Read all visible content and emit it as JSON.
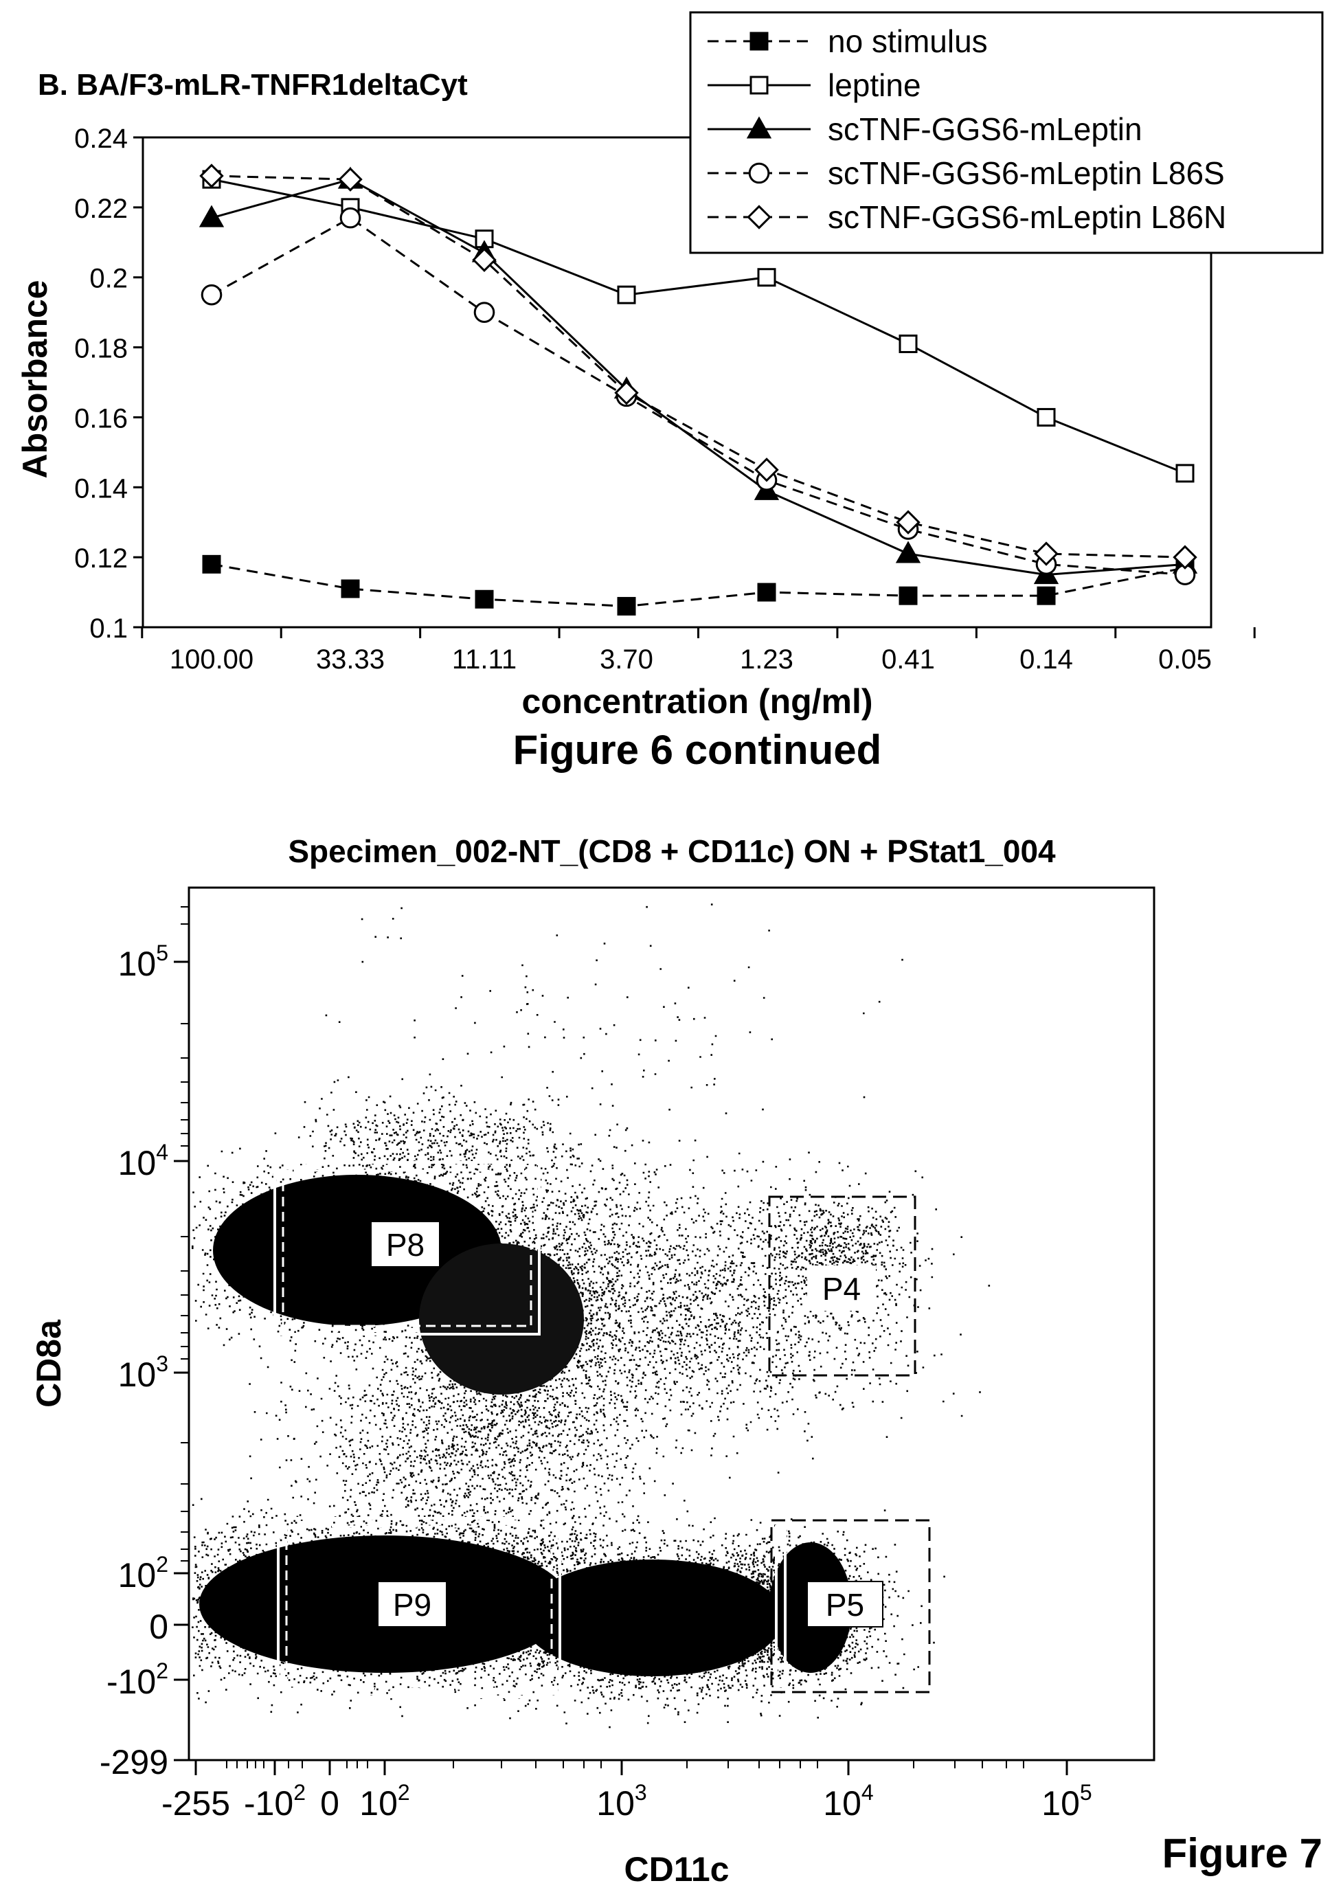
{
  "chart_data": [
    {
      "type": "line",
      "title": "B. BA/F3-mLR-TNFR1deltaCyt",
      "xlabel": "concentration (ng/ml)",
      "ylabel": "Absorbance",
      "categories": [
        "100.00",
        "33.33",
        "11.11",
        "3.70",
        "1.23",
        "0.41",
        "0.14",
        "0.05"
      ],
      "ylim": [
        0.1,
        0.24
      ],
      "yticks": [
        "0.24",
        "0.22",
        "0.2",
        "0.18",
        "0.16",
        "0.14",
        "0.12",
        "0.1"
      ],
      "legend_position": "top-right",
      "series": [
        {
          "name": "no stimulus",
          "style": "dashed",
          "marker": "filled-square",
          "values": [
            0.118,
            0.111,
            0.108,
            0.106,
            0.11,
            0.109,
            0.109,
            0.117
          ]
        },
        {
          "name": "leptine",
          "style": "solid",
          "marker": "open-square",
          "values": [
            0.228,
            0.22,
            0.211,
            0.195,
            0.2,
            0.181,
            0.16,
            0.144
          ]
        },
        {
          "name": "scTNF-GGS6-mLeptin",
          "style": "solid",
          "marker": "filled-triangle",
          "values": [
            0.217,
            0.228,
            0.207,
            0.168,
            0.139,
            0.121,
            0.115,
            0.118
          ]
        },
        {
          "name": "scTNF-GGS6-mLeptin L86S",
          "style": "dashed",
          "marker": "open-circle",
          "values": [
            0.195,
            0.217,
            0.19,
            0.166,
            0.142,
            0.128,
            0.118,
            0.115
          ]
        },
        {
          "name": "scTNF-GGS6-mLeptin L86N",
          "style": "dashed",
          "marker": "open-diamond",
          "values": [
            0.229,
            0.228,
            0.205,
            0.167,
            0.145,
            0.13,
            0.121,
            0.12
          ]
        }
      ],
      "caption": "Figure 6 continued"
    },
    {
      "type": "scatter",
      "title": "Specimen_002-NT_(CD8 + CD11c) ON + PStat1_004",
      "xlabel": "CD11c",
      "ylabel": "CD8a",
      "xticks": [
        {
          "base": "-255",
          "exp": ""
        },
        {
          "base": "-10",
          "exp": "2"
        },
        {
          "base": "0",
          "exp": ""
        },
        {
          "base": "10",
          "exp": "2"
        },
        {
          "base": "10",
          "exp": "3"
        },
        {
          "base": "10",
          "exp": "4"
        },
        {
          "base": "10",
          "exp": "5"
        }
      ],
      "yticks": [
        {
          "base": "10",
          "exp": "5"
        },
        {
          "base": "10",
          "exp": "4"
        },
        {
          "base": "10",
          "exp": "3"
        },
        {
          "base": "10",
          "exp": "2"
        },
        {
          "base": "0",
          "exp": ""
        },
        {
          "base": "-10",
          "exp": "2"
        },
        {
          "base": "-299",
          "exp": ""
        }
      ],
      "gates": [
        "P8",
        "P4",
        "P9",
        "P5"
      ],
      "caption": "Figure 7"
    }
  ]
}
